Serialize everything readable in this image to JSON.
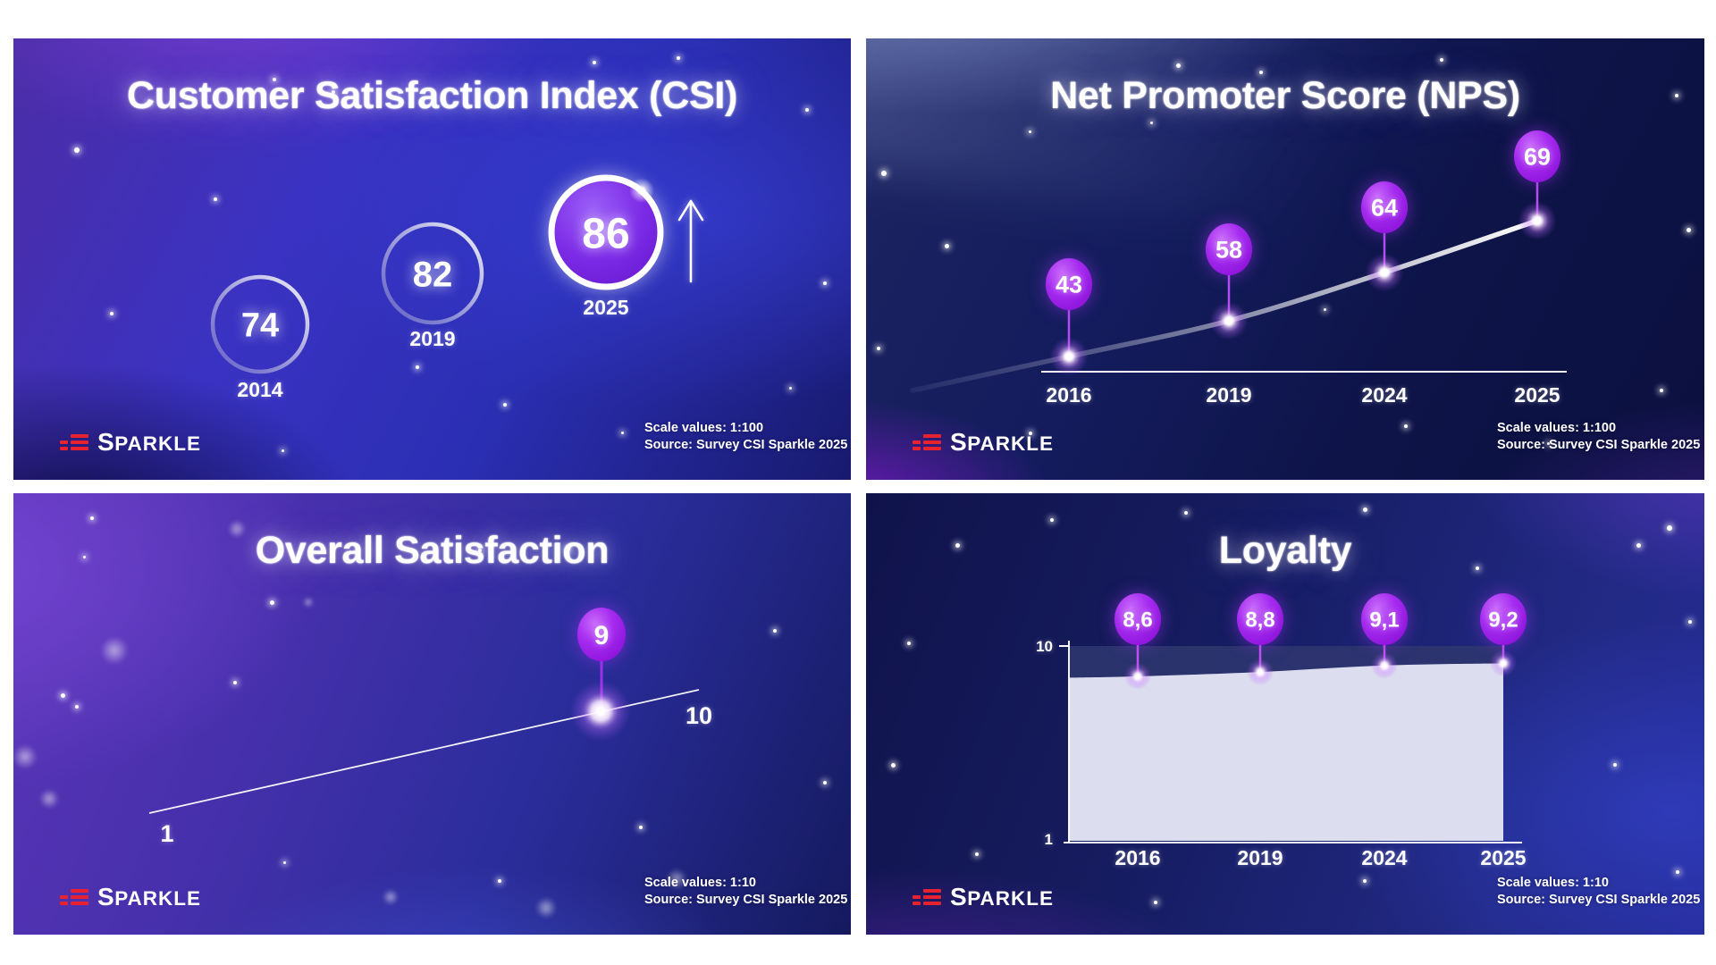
{
  "brand": {
    "logo_first": "S",
    "logo_rest": "PARKLE"
  },
  "panels": [
    {
      "key": "csi",
      "title": "Customer Satisfaction Index (CSI)",
      "scale_note": "Scale values: 1:100",
      "source_note": "Source: Survey CSI Sparkle 2025"
    },
    {
      "key": "nps",
      "title": "Net Promoter Score (NPS)",
      "scale_note": "Scale values: 1:100",
      "source_note": "Source: Survey CSI Sparkle 2025"
    },
    {
      "key": "overall",
      "title": "Overall Satisfaction",
      "scale_note": "Scale values: 1:10",
      "source_note": "Source: Survey CSI Sparkle 2025"
    },
    {
      "key": "loyalty",
      "title": "Loyalty",
      "scale_note": "Scale values: 1:10",
      "source_note": "Source: Survey CSI Sparkle 2025"
    }
  ],
  "chart_data": [
    {
      "panel": "csi",
      "type": "kpi-circles",
      "title": "Customer Satisfaction Index (CSI)",
      "categories": [
        "2014",
        "2019",
        "2025"
      ],
      "values": [
        74,
        82,
        86
      ],
      "highlight_index": 2,
      "annotation": "upward trend arrow",
      "ylim": [
        0,
        100
      ]
    },
    {
      "panel": "nps",
      "type": "line",
      "title": "Net Promoter Score (NPS)",
      "categories": [
        "2016",
        "2019",
        "2024",
        "2025"
      ],
      "values": [
        43,
        58,
        64,
        69
      ],
      "ylim": [
        0,
        100
      ],
      "marker": "balloon"
    },
    {
      "panel": "overall",
      "type": "scale-indicator",
      "title": "Overall Satisfaction",
      "xlim": [
        1,
        10
      ],
      "value": 9,
      "value_label": "9",
      "axis_labels": [
        "1",
        "10"
      ]
    },
    {
      "panel": "loyalty",
      "type": "area",
      "title": "Loyalty",
      "categories": [
        "2016",
        "2019",
        "2024",
        "2025"
      ],
      "values": [
        8.6,
        8.8,
        9.1,
        9.2
      ],
      "value_labels": [
        "8,6",
        "8,8",
        "9,1",
        "9,2"
      ],
      "ylim": [
        1,
        10
      ],
      "ytick_labels": [
        "10",
        "1"
      ]
    }
  ],
  "colors": {
    "balloon_light": "#c768fa",
    "balloon_mid": "#a62bf0",
    "balloon_dark": "#8a10d8",
    "stem": "#b44cf2",
    "stem_dark": "#9b30e8",
    "area_fill": "#dcdeef",
    "area_band": "#2e356f",
    "logo_red": "#e8232f",
    "text_white": "#ffffff",
    "highlight_fill_light": "#9a5ff8",
    "highlight_fill_dark": "#6a1ad0"
  }
}
